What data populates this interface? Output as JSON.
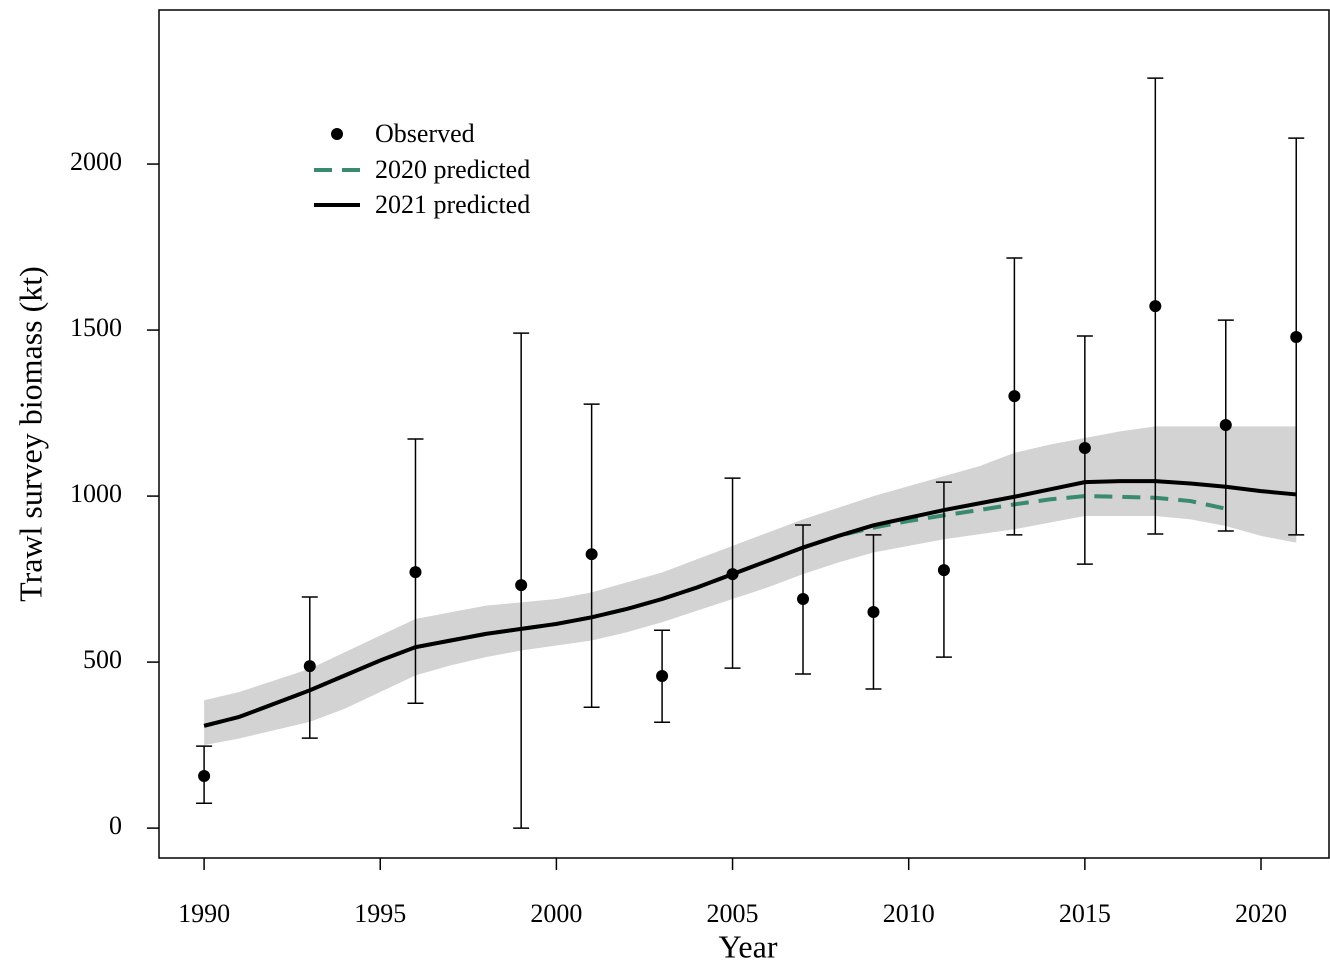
{
  "chart_data": {
    "type": "line",
    "xlabel": "Year",
    "ylabel": "Trawl survey biomass (kt)",
    "xlim": [
      1988.72,
      2021.93
    ],
    "ylim": [
      -90,
      2464
    ],
    "xticks": [
      1990,
      1995,
      2000,
      2005,
      2010,
      2015,
      2020
    ],
    "yticks": [
      0,
      500,
      1000,
      1500,
      2000
    ],
    "interval": {
      "color": "#d3d3d3",
      "x": [
        1990,
        1991,
        1992,
        1993,
        1994,
        1995,
        1996,
        1997,
        1998,
        1999,
        2000,
        2001,
        2002,
        2003,
        2004,
        2005,
        2006,
        2007,
        2008,
        2009,
        2010,
        2011,
        2012,
        2013,
        2014,
        2015,
        2016,
        2017,
        2018,
        2019,
        2020,
        2021
      ],
      "lower": [
        250,
        270,
        295,
        320,
        360,
        410,
        460,
        490,
        515,
        535,
        550,
        565,
        590,
        620,
        655,
        690,
        725,
        765,
        800,
        830,
        850,
        870,
        885,
        900,
        920,
        940,
        940,
        940,
        930,
        910,
        880,
        860
      ],
      "upper": [
        385,
        410,
        445,
        480,
        530,
        580,
        630,
        650,
        670,
        680,
        690,
        710,
        740,
        770,
        810,
        850,
        890,
        930,
        965,
        1000,
        1030,
        1060,
        1090,
        1130,
        1155,
        1175,
        1195,
        1210,
        1210,
        1210,
        1210,
        1210
      ]
    },
    "observed": {
      "name": "Observed",
      "color": "#000000",
      "x": [
        1990,
        1993,
        1996,
        1999,
        2001,
        2003,
        2005,
        2007,
        2009,
        2011,
        2013,
        2015,
        2017,
        2019,
        2021
      ],
      "values": [
        157,
        488,
        771,
        732,
        825,
        458,
        765,
        690,
        651,
        777,
        1301,
        1145,
        1572,
        1214,
        1479
      ],
      "lower": [
        75,
        271,
        376,
        0,
        364,
        319,
        482,
        464,
        419,
        515,
        883,
        795,
        886,
        895,
        883
      ],
      "upper": [
        247,
        696,
        1172,
        1491,
        1277,
        596,
        1054,
        913,
        883,
        1042,
        1717,
        1482,
        2259,
        1530,
        2078
      ]
    },
    "series": [
      {
        "name": "2020 predicted",
        "color": "#3a8a6e",
        "dashed": true,
        "x": [
          1990,
          1991,
          1992,
          1993,
          1994,
          1995,
          1996,
          1997,
          1998,
          1999,
          2000,
          2001,
          2002,
          2003,
          2004,
          2005,
          2006,
          2007,
          2008,
          2009,
          2010,
          2011,
          2012,
          2013,
          2014,
          2015,
          2016,
          2017,
          2018,
          2019
        ],
        "values": [
          308,
          335,
          375,
          415,
          460,
          505,
          545,
          565,
          585,
          600,
          615,
          635,
          660,
          690,
          725,
          765,
          805,
          845,
          880,
          905,
          925,
          942,
          958,
          975,
          990,
          1000,
          998,
          995,
          985,
          962
        ]
      },
      {
        "name": "2021 predicted",
        "color": "#000000",
        "dashed": false,
        "x": [
          1990,
          1991,
          1992,
          1993,
          1994,
          1995,
          1996,
          1997,
          1998,
          1999,
          2000,
          2001,
          2002,
          2003,
          2004,
          2005,
          2006,
          2007,
          2008,
          2009,
          2010,
          2011,
          2012,
          2013,
          2014,
          2015,
          2016,
          2017,
          2018,
          2019,
          2020,
          2021
        ],
        "values": [
          308,
          335,
          375,
          415,
          460,
          505,
          545,
          565,
          585,
          600,
          615,
          635,
          660,
          690,
          725,
          765,
          805,
          845,
          880,
          912,
          935,
          958,
          978,
          998,
          1020,
          1042,
          1045,
          1045,
          1038,
          1028,
          1015,
          1005
        ]
      }
    ]
  }
}
